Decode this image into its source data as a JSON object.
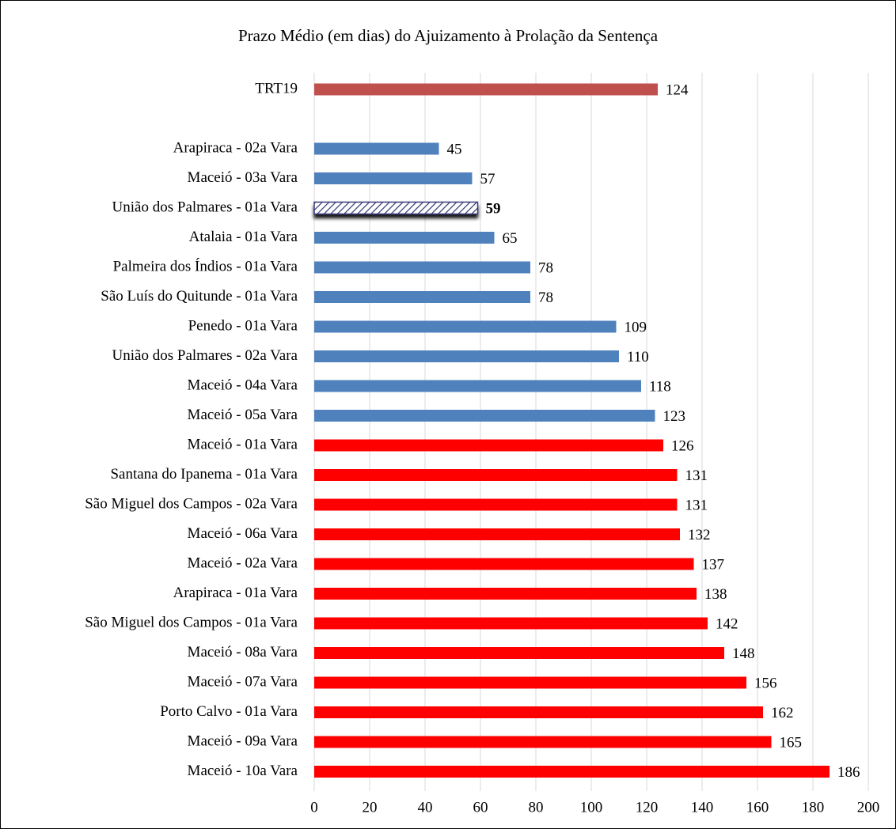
{
  "chart_data": {
    "type": "barh",
    "title": "Prazo Médio (em dias) do Ajuizamento à Prolação da Sentença",
    "categories": [
      "TRT19",
      null,
      "Arapiraca - 02a Vara",
      "Maceió - 03a Vara",
      "União dos Palmares - 01a Vara",
      "Atalaia - 01a Vara",
      "Palmeira dos Índios - 01a Vara",
      "São Luís do Quitunde - 01a Vara",
      "Penedo - 01a Vara",
      "União dos Palmares - 02a Vara",
      "Maceió - 04a Vara",
      "Maceió - 05a Vara",
      "Maceió - 01a Vara",
      "Santana do Ipanema - 01a Vara",
      "São Miguel dos Campos - 02a Vara",
      "Maceió - 06a Vara",
      "Maceió - 02a Vara",
      "Arapiraca - 01a Vara",
      "São Miguel dos Campos - 01a Vara",
      "Maceió - 08a Vara",
      "Maceió - 07a Vara",
      "Porto Calvo - 01a Vara",
      "Maceió - 09a Vara",
      "Maceió - 10a Vara"
    ],
    "values": [
      124,
      null,
      45,
      57,
      59,
      65,
      78,
      78,
      109,
      110,
      118,
      123,
      126,
      131,
      131,
      132,
      137,
      138,
      142,
      148,
      156,
      162,
      165,
      186
    ],
    "colors": [
      "#c0504d",
      null,
      "#4f81bd",
      "#4f81bd",
      "#3b3b7a",
      "#4f81bd",
      "#4f81bd",
      "#4f81bd",
      "#4f81bd",
      "#4f81bd",
      "#4f81bd",
      "#4f81bd",
      "#ff0000",
      "#ff0000",
      "#ff0000",
      "#ff0000",
      "#ff0000",
      "#ff0000",
      "#ff0000",
      "#ff0000",
      "#ff0000",
      "#ff0000",
      "#ff0000",
      "#ff0000"
    ],
    "hatched": [
      4
    ],
    "xlim": [
      0,
      200
    ],
    "xticks": [
      0,
      20,
      40,
      60,
      80,
      100,
      120,
      140,
      160,
      180,
      200
    ],
    "grid": true
  }
}
